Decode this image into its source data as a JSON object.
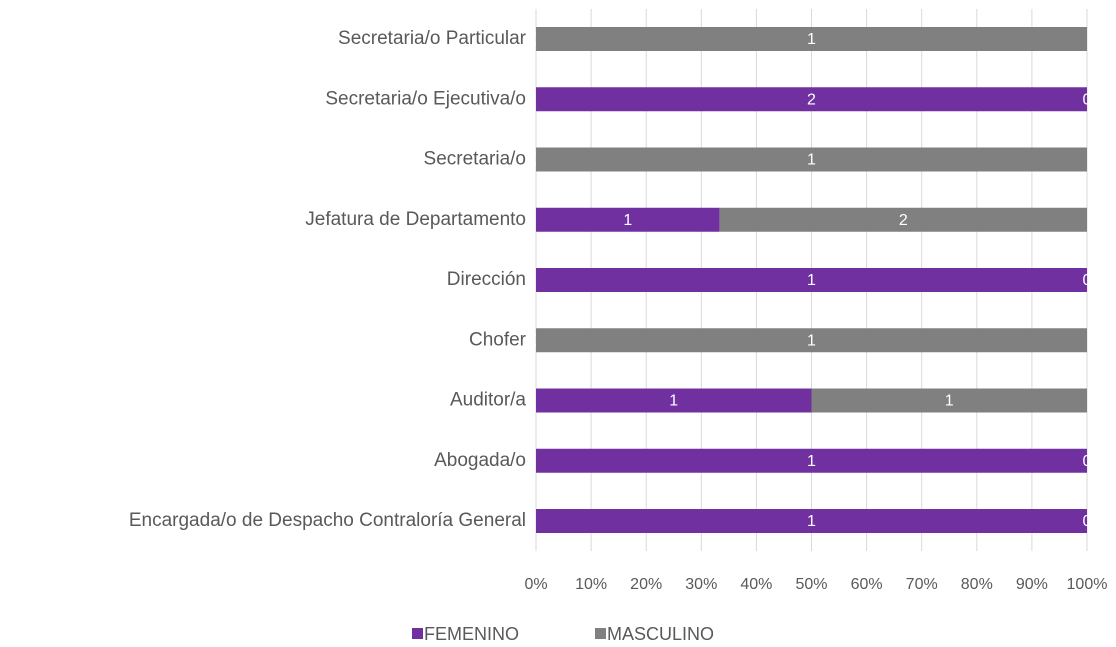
{
  "chart_data": {
    "type": "bar",
    "orientation": "horizontal",
    "stacking": "percent",
    "categories": [
      "Secretaria/o Particular",
      "Secretaria/o Ejecutiva/o",
      "Secretaria/o",
      "Jefatura de Departamento",
      "Dirección",
      "Chofer",
      "Auditor/a",
      "Abogada/o",
      "Encargada/o de Despacho Contraloría General"
    ],
    "series": [
      {
        "name": "FEMENINO",
        "color": "#7030a0",
        "values": [
          0,
          2,
          0,
          1,
          1,
          0,
          1,
          1,
          1
        ]
      },
      {
        "name": "MASCULINO",
        "color": "#808080",
        "values": [
          1,
          0,
          1,
          2,
          0,
          1,
          1,
          0,
          0
        ]
      }
    ],
    "xlim": [
      0,
      100
    ],
    "xticks": [
      {
        "value": 0,
        "label": "0%"
      },
      {
        "value": 10,
        "label": "10%"
      },
      {
        "value": 20,
        "label": "20%"
      },
      {
        "value": 30,
        "label": "30%"
      },
      {
        "value": 40,
        "label": "40%"
      },
      {
        "value": 50,
        "label": "50%"
      },
      {
        "value": 60,
        "label": "60%"
      },
      {
        "value": 70,
        "label": "70%"
      },
      {
        "value": 80,
        "label": "80%"
      },
      {
        "value": 90,
        "label": "90%"
      },
      {
        "value": 100,
        "label": "100%"
      }
    ],
    "grid": true,
    "legend": "bottom"
  }
}
